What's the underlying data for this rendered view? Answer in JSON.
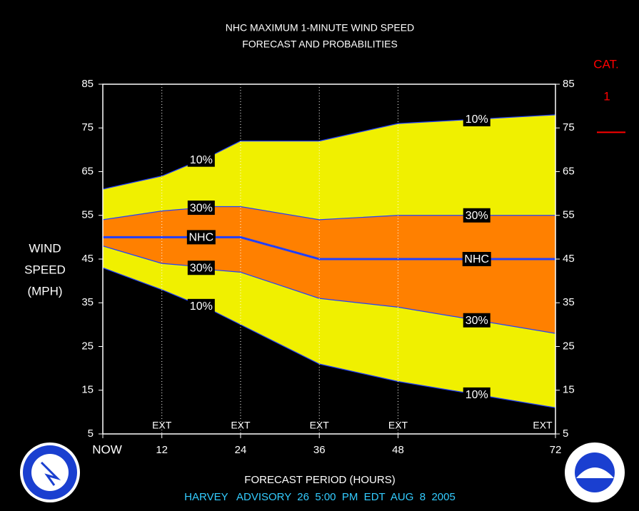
{
  "chart_data": {
    "type": "fan",
    "title": [
      "NHC MAXIMUM 1-MINUTE WIND SPEED",
      "FORECAST AND PROBABILITIES"
    ],
    "y_label": [
      "WIND",
      "SPEED",
      "(MPH)"
    ],
    "x_label": "FORECAST PERIOD (HOURS)",
    "footer": "HARVEY   ADVISORY  26  5:00  PM  EDT  AUG  8  2005",
    "x": [
      3,
      12,
      16,
      20,
      24,
      36,
      48,
      60,
      72
    ],
    "xlim": [
      3,
      72
    ],
    "xticks": [
      {
        "value": 3,
        "label": "NOW"
      },
      12,
      24,
      36,
      48,
      72
    ],
    "ylim": [
      5,
      85
    ],
    "yticks": [
      5,
      15,
      25,
      35,
      45,
      55,
      65,
      75,
      85
    ],
    "y2lim": [
      5,
      85
    ],
    "y2ticks": [
      5,
      15,
      25,
      35,
      45,
      55,
      65,
      75,
      85
    ],
    "ext_label": "EXT",
    "ext_x": [
      12,
      24,
      36,
      48,
      72
    ],
    "series": [
      {
        "name": "10%",
        "color": "#2040ff",
        "values": [
          61,
          64,
          66.5,
          69,
          72,
          72,
          76,
          77,
          78
        ]
      },
      {
        "name": "30%",
        "color": "#2040ff",
        "values": [
          54,
          56,
          56.5,
          57,
          57,
          54,
          55,
          55,
          55
        ]
      },
      {
        "name": "NHC",
        "color": "#2040ff",
        "values": [
          50,
          50,
          50,
          50,
          50,
          45,
          45,
          45,
          45
        ]
      },
      {
        "name": "30%",
        "color": "#2040ff",
        "values": [
          48,
          44,
          43.5,
          42.5,
          42,
          36,
          34,
          31,
          28
        ]
      },
      {
        "name": "10%",
        "color": "#2040ff",
        "values": [
          43,
          38,
          35.5,
          33,
          30,
          21,
          17,
          14,
          11
        ]
      }
    ],
    "outer_color": "#f0f000",
    "inner_color": "#ff8000",
    "category": {
      "title": "CAT.",
      "label": "1",
      "threshold": 74,
      "color": "#ff0000"
    },
    "footer_color": "#33ccff"
  }
}
